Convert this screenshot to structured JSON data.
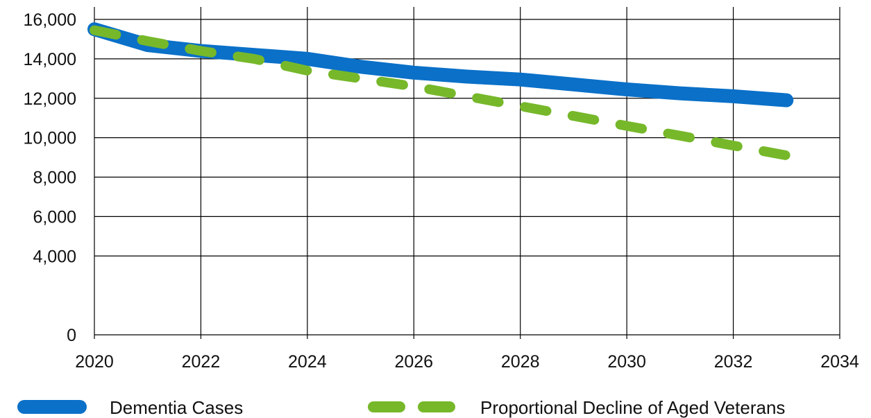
{
  "chart_data": {
    "type": "line",
    "title": "",
    "xlabel": "",
    "ylabel": "",
    "xlim": [
      2020,
      2034
    ],
    "ylim": [
      0,
      16000
    ],
    "x_ticks": [
      2020,
      2022,
      2024,
      2026,
      2028,
      2030,
      2032,
      2034
    ],
    "y_ticks": [
      0,
      4000,
      6000,
      8000,
      10000,
      12000,
      14000,
      16000
    ],
    "x_tick_labels": [
      "2020",
      "2022",
      "2024",
      "2026",
      "2028",
      "2030",
      "2032",
      "2034"
    ],
    "y_tick_labels": [
      "0",
      "4,000",
      "6,000",
      "8,000",
      "10,000",
      "12,000",
      "14,000",
      "16,000"
    ],
    "grid": true,
    "legend_position": "bottom",
    "series": [
      {
        "name": "Dementia Cases",
        "color": "#0a70c8",
        "style": "solid",
        "x": [
          2020,
          2021,
          2022,
          2023,
          2024,
          2025,
          2026,
          2027,
          2028,
          2029,
          2030,
          2031,
          2032,
          2033
        ],
        "y": [
          15500,
          14700,
          14400,
          14200,
          14000,
          13600,
          13300,
          13100,
          12950,
          12700,
          12450,
          12250,
          12100,
          11900
        ]
      },
      {
        "name": "Proportional Decline of Aged Veterans",
        "color": "#76b82a",
        "style": "dashed",
        "x": [
          2020,
          2021,
          2022,
          2023,
          2024,
          2025,
          2026,
          2027,
          2028,
          2029,
          2030,
          2031,
          2032,
          2033
        ],
        "y": [
          15450,
          14900,
          14400,
          14000,
          13400,
          13000,
          12600,
          12100,
          11600,
          11100,
          10600,
          10100,
          9600,
          9100
        ]
      }
    ]
  }
}
